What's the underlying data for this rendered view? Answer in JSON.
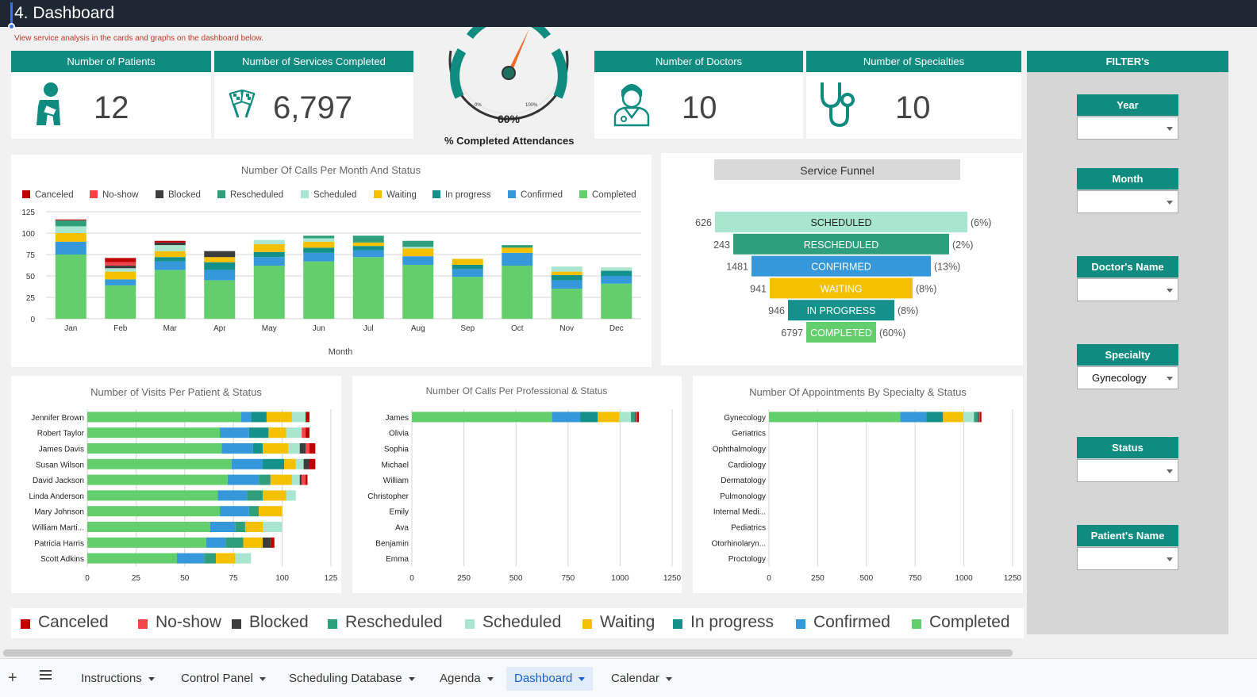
{
  "header": {
    "title": "4. Dashboard",
    "note": "View service analysis in the cards and graphs on the dashboard below."
  },
  "cards": {
    "patients": {
      "label": "Number of  Patients",
      "value": "12",
      "icon": "patient-icon"
    },
    "services": {
      "label": "Number of Services Completed",
      "value": "6,797",
      "icon": "checkered-flags-icon"
    },
    "doctors": {
      "label": "Number of Doctors",
      "value": "10",
      "icon": "doctor-icon"
    },
    "specialties": {
      "label": "Number of Specialties",
      "value": "10",
      "icon": "stethoscope-icon"
    }
  },
  "gauge": {
    "value_text": "60%",
    "value": 60,
    "min_label": "0%",
    "max_label": "100%",
    "label": "% Completed Attendances"
  },
  "colors": {
    "Canceled": "#c00000",
    "No-show": "#f2464b",
    "Blocked": "#3d3d3d",
    "Rescheduled": "#2e9e7b",
    "Scheduled": "#a8e6cf",
    "Waiting": "#f5c000",
    "In progress": "#14918a",
    "Confirmed": "#3498db",
    "Completed": "#63cf6c"
  },
  "statuses": [
    "Canceled",
    "No-show",
    "Blocked",
    "Rescheduled",
    "Scheduled",
    "Waiting",
    "In progress",
    "Confirmed",
    "Completed"
  ],
  "chart_data": [
    {
      "type": "bar",
      "stacked": true,
      "title": "Number Of Calls Per Month And Status",
      "xlabel": "Month",
      "ylabel": "",
      "ylim": [
        0,
        125
      ],
      "yticks": [
        0,
        25,
        50,
        75,
        100,
        125
      ],
      "legend": "top",
      "categories": [
        "Jan",
        "Feb",
        "Mar",
        "Apr",
        "May",
        "Jun",
        "Jul",
        "Aug",
        "Sep",
        "Oct",
        "Nov",
        "Dec"
      ],
      "series": [
        {
          "name": "Completed",
          "values": [
            75,
            39,
            57,
            45,
            62,
            67,
            72,
            63,
            49,
            62,
            35,
            41
          ]
        },
        {
          "name": "Confirmed",
          "values": [
            15,
            7,
            10,
            12,
            10,
            10,
            8,
            10,
            9,
            15,
            10,
            9
          ]
        },
        {
          "name": "In progress",
          "values": [
            0,
            0,
            5,
            9,
            6,
            6,
            5,
            0,
            5,
            0,
            6,
            6
          ]
        },
        {
          "name": "Waiting",
          "values": [
            10,
            9,
            7,
            6,
            9,
            7,
            4,
            9,
            7,
            6,
            4,
            0
          ]
        },
        {
          "name": "Scheduled",
          "values": [
            8,
            4,
            7,
            0,
            5,
            4,
            0,
            2,
            0,
            0,
            6,
            4
          ]
        },
        {
          "name": "Rescheduled",
          "values": [
            7,
            0,
            0,
            0,
            0,
            3,
            8,
            7,
            0,
            3,
            0,
            0
          ]
        },
        {
          "name": "Blocked",
          "values": [
            0,
            3,
            3,
            7,
            0,
            0,
            0,
            0,
            0,
            0,
            0,
            0
          ]
        },
        {
          "name": "No-show",
          "values": [
            0,
            4,
            0,
            0,
            0,
            0,
            0,
            0,
            0,
            0,
            0,
            0
          ]
        },
        {
          "name": "Canceled",
          "values": [
            1,
            5,
            2,
            0,
            0,
            0,
            0,
            0,
            0,
            0,
            0,
            0
          ]
        }
      ]
    },
    {
      "type": "funnel",
      "title": "Service Funnel",
      "stages": [
        {
          "label": "SCHEDULED",
          "value": 626,
          "pct": "(6%)",
          "color": "#a8e6cf"
        },
        {
          "label": "RESCHEDULED",
          "value": 243,
          "pct": "(2%)",
          "color": "#2e9e7b"
        },
        {
          "label": "CONFIRMED",
          "value": 1481,
          "pct": "(13%)",
          "color": "#3498db"
        },
        {
          "label": "WAITING",
          "value": 941,
          "pct": "(8%)",
          "color": "#f5c000"
        },
        {
          "label": "IN PROGRESS",
          "value": 946,
          "pct": "(8%)",
          "color": "#14918a"
        },
        {
          "label": "COMPLETED",
          "value": 6797,
          "pct": "(60%)",
          "color": "#63cf6c"
        }
      ]
    },
    {
      "type": "bar",
      "orientation": "horizontal",
      "stacked": true,
      "title": "Number of Visits Per Patient & Status",
      "xlim": [
        0,
        125
      ],
      "xticks": [
        0,
        25,
        50,
        75,
        100,
        125
      ],
      "categories": [
        "Jennifer Brown",
        "Robert Taylor",
        "James Davis",
        "Susan Wilson",
        "David Jackson",
        "Linda Anderson",
        "Mary Johnson",
        "William Marti...",
        "Patricia Harris",
        "Scott Adkins"
      ],
      "series": [
        {
          "name": "Completed",
          "values": [
            79,
            68,
            69,
            74,
            72,
            67,
            68,
            63,
            61,
            46
          ]
        },
        {
          "name": "Confirmed",
          "values": [
            5,
            15,
            16,
            16,
            16,
            15,
            15,
            13,
            10,
            14
          ]
        },
        {
          "name": "In progress",
          "values": [
            8,
            10,
            5,
            11,
            0,
            0,
            0,
            0,
            0,
            0
          ]
        },
        {
          "name": "Rescheduled",
          "values": [
            0,
            0,
            0,
            0,
            6,
            8,
            5,
            5,
            9,
            6
          ]
        },
        {
          "name": "Waiting",
          "values": [
            13,
            9,
            13,
            6,
            11,
            12,
            12,
            9,
            10,
            10
          ]
        },
        {
          "name": "Scheduled",
          "values": [
            7,
            8,
            6,
            4,
            4,
            5,
            0,
            10,
            0,
            8
          ]
        },
        {
          "name": "Blocked",
          "values": [
            0,
            0,
            3,
            3,
            1,
            0,
            0,
            0,
            4,
            0
          ]
        },
        {
          "name": "No-show",
          "values": [
            0,
            2,
            2,
            0,
            2,
            0,
            0,
            0,
            0,
            0
          ]
        },
        {
          "name": "Canceled",
          "values": [
            2,
            2,
            3,
            3,
            1,
            0,
            0,
            0,
            2,
            0
          ]
        }
      ]
    },
    {
      "type": "bar",
      "orientation": "horizontal",
      "stacked": true,
      "title": "Number Of Calls Per Professional & Status",
      "xlim": [
        0,
        1250
      ],
      "xticks": [
        0,
        250,
        500,
        750,
        1000,
        1250
      ],
      "categories": [
        "James",
        "Olivia",
        "Sophia",
        "Michael",
        "William",
        "Christopher",
        "Emily",
        "Ava",
        "Benjamin",
        "Emma"
      ],
      "series": [
        {
          "name": "Completed",
          "values": [
            673,
            0,
            0,
            0,
            0,
            0,
            0,
            0,
            0,
            0
          ]
        },
        {
          "name": "Confirmed",
          "values": [
            135,
            0,
            0,
            0,
            0,
            0,
            0,
            0,
            0,
            0
          ]
        },
        {
          "name": "In progress",
          "values": [
            85,
            0,
            0,
            0,
            0,
            0,
            0,
            0,
            0,
            0
          ]
        },
        {
          "name": "Waiting",
          "values": [
            104,
            0,
            0,
            0,
            0,
            0,
            0,
            0,
            0,
            0
          ]
        },
        {
          "name": "Scheduled",
          "values": [
            55,
            0,
            0,
            0,
            0,
            0,
            0,
            0,
            0,
            0
          ]
        },
        {
          "name": "Rescheduled",
          "values": [
            20,
            0,
            0,
            0,
            0,
            0,
            0,
            0,
            0,
            0
          ]
        },
        {
          "name": "Blocked",
          "values": [
            5,
            0,
            0,
            0,
            0,
            0,
            0,
            0,
            0,
            0
          ]
        },
        {
          "name": "No-show",
          "values": [
            5,
            0,
            0,
            0,
            0,
            0,
            0,
            0,
            0,
            0
          ]
        },
        {
          "name": "Canceled",
          "values": [
            8,
            0,
            0,
            0,
            0,
            0,
            0,
            0,
            0,
            0
          ]
        }
      ]
    },
    {
      "type": "bar",
      "orientation": "horizontal",
      "stacked": true,
      "title": "Number Of Appointments By Specialty & Status",
      "xlim": [
        0,
        1250
      ],
      "xticks": [
        0,
        250,
        500,
        750,
        1000,
        1250
      ],
      "categories": [
        "Gynecology",
        "Geriatrics",
        "Ophthalmology",
        "Cardiology",
        "Dermatology",
        "Pulmonology",
        "Internal Medi...",
        "Pediatrics",
        "Otorhinolaryn...",
        "Proctology"
      ],
      "series": [
        {
          "name": "Completed",
          "values": [
            673,
            0,
            0,
            0,
            0,
            0,
            0,
            0,
            0,
            0
          ]
        },
        {
          "name": "Confirmed",
          "values": [
            135,
            0,
            0,
            0,
            0,
            0,
            0,
            0,
            0,
            0
          ]
        },
        {
          "name": "In progress",
          "values": [
            85,
            0,
            0,
            0,
            0,
            0,
            0,
            0,
            0,
            0
          ]
        },
        {
          "name": "Waiting",
          "values": [
            104,
            0,
            0,
            0,
            0,
            0,
            0,
            0,
            0,
            0
          ]
        },
        {
          "name": "Scheduled",
          "values": [
            55,
            0,
            0,
            0,
            0,
            0,
            0,
            0,
            0,
            0
          ]
        },
        {
          "name": "Rescheduled",
          "values": [
            20,
            0,
            0,
            0,
            0,
            0,
            0,
            0,
            0,
            0
          ]
        },
        {
          "name": "Blocked",
          "values": [
            5,
            0,
            0,
            0,
            0,
            0,
            0,
            0,
            0,
            0
          ]
        },
        {
          "name": "No-show",
          "values": [
            5,
            0,
            0,
            0,
            0,
            0,
            0,
            0,
            0,
            0
          ]
        },
        {
          "name": "Canceled",
          "values": [
            8,
            0,
            0,
            0,
            0,
            0,
            0,
            0,
            0,
            0
          ]
        }
      ]
    }
  ],
  "filters": {
    "title": "FILTER's",
    "items": [
      {
        "label": "Year",
        "value": ""
      },
      {
        "label": "Month",
        "value": ""
      },
      {
        "label": "Doctor's Name",
        "value": ""
      },
      {
        "label": "Specialty",
        "value": "Gynecology"
      },
      {
        "label": "Status",
        "value": ""
      },
      {
        "label": "Patient's Name",
        "value": ""
      }
    ]
  },
  "big_legend": [
    "Canceled",
    "No-show",
    "Blocked",
    "Rescheduled",
    "Scheduled",
    "Waiting",
    "In progress",
    "Confirmed",
    "Completed"
  ],
  "sheet_tabs": [
    "Instructions",
    "Control Panel",
    "Scheduling Database",
    "Agenda",
    "Dashboard",
    "Calendar"
  ],
  "active_tab": "Dashboard"
}
